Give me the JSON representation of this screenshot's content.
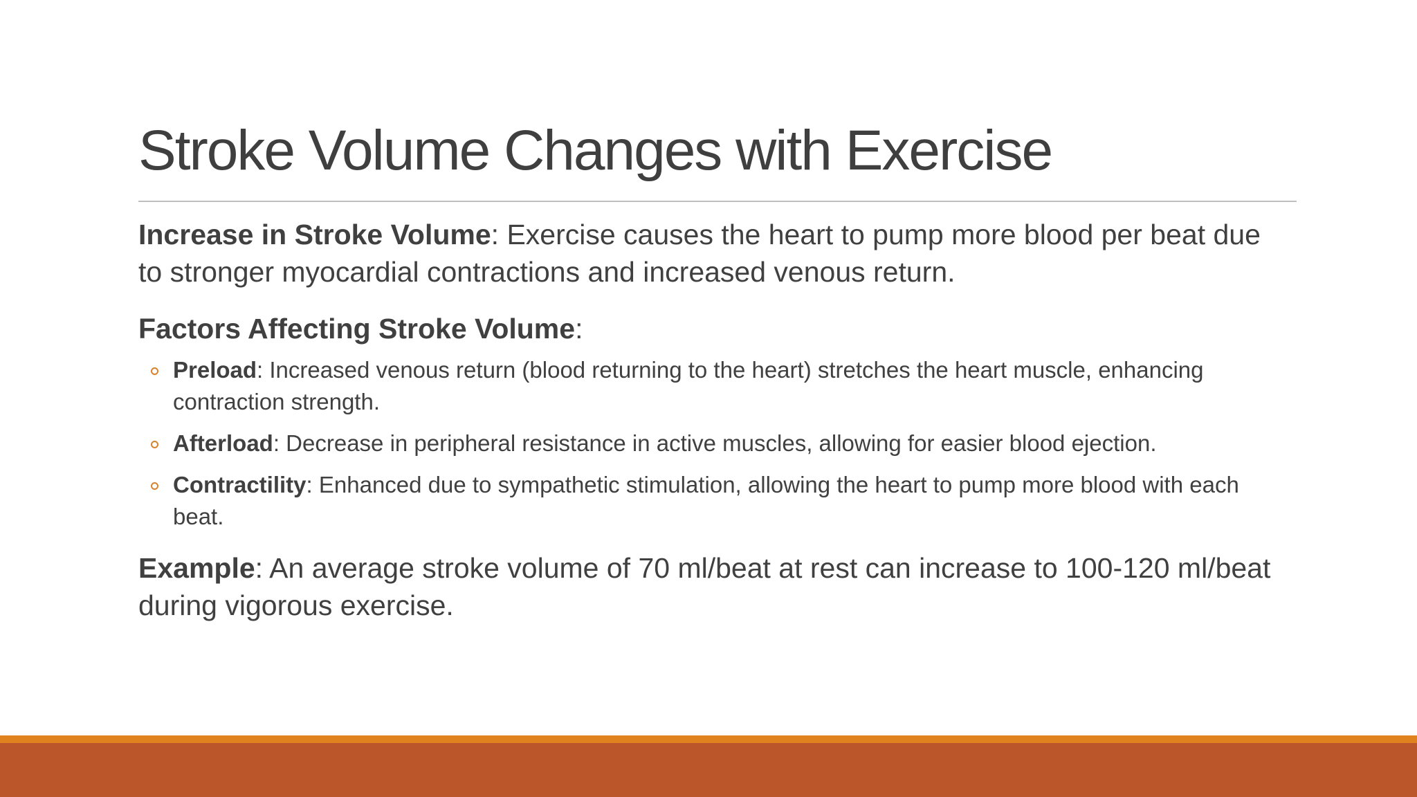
{
  "title": "Stroke Volume Changes with Exercise",
  "items": [
    {
      "label": "Increase in Stroke Volume",
      "text": ": Exercise causes the heart to pump more blood per beat due to stronger myocardial contractions and increased venous return."
    },
    {
      "label": "Factors Affecting Stroke Volume",
      "text": ":",
      "bullets": [
        {
          "label": "Preload",
          "text": ": Increased venous return (blood returning to the heart) stretches the heart muscle, enhancing contraction strength."
        },
        {
          "label": "Afterload",
          "text": ": Decrease in peripheral resistance in active muscles, allowing for easier blood ejection."
        },
        {
          "label": "Contractility",
          "text": ": Enhanced due to sympathetic stimulation, allowing the heart to pump more blood with each beat."
        }
      ]
    },
    {
      "label": "Example",
      "text": ": An average stroke volume of 70 ml/beat at rest can increase to 100-120 ml/beat during vigorous exercise."
    }
  ]
}
